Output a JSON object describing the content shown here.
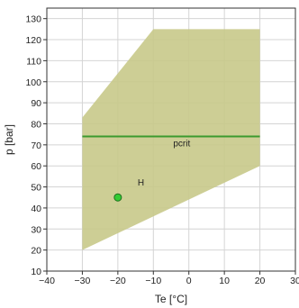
{
  "chart_data": {
    "type": "scatter",
    "title": "",
    "xlabel": "Te [°C]",
    "ylabel": "p [bar]",
    "xlim": [
      -40,
      30
    ],
    "ylim": [
      10,
      135
    ],
    "x_ticks": [
      -40,
      -30,
      -20,
      -10,
      0,
      10,
      20,
      30
    ],
    "y_ticks": [
      10,
      20,
      30,
      40,
      50,
      60,
      70,
      80,
      90,
      100,
      110,
      120,
      130
    ],
    "x_tick_labels": [
      "−40",
      "−30",
      "−20",
      "−10",
      "0",
      "10",
      "20",
      "30"
    ],
    "y_tick_labels": [
      "10",
      "20",
      "30",
      "40",
      "50",
      "60",
      "70",
      "80",
      "90",
      "100",
      "110",
      "120",
      "130"
    ],
    "grid": true,
    "envelope": {
      "polygon": [
        [
          -30,
          20
        ],
        [
          -30,
          83
        ],
        [
          -10,
          125
        ],
        [
          20,
          125
        ],
        [
          20,
          60
        ]
      ],
      "color": "#c8c98a"
    },
    "reference_line": {
      "label": "pcrit",
      "value": 74,
      "x_range": [
        -30,
        20
      ],
      "color": "#3c9a2e"
    },
    "points": [
      {
        "label": "H",
        "x": -20,
        "y": 45,
        "color": "#33cc33"
      }
    ]
  }
}
